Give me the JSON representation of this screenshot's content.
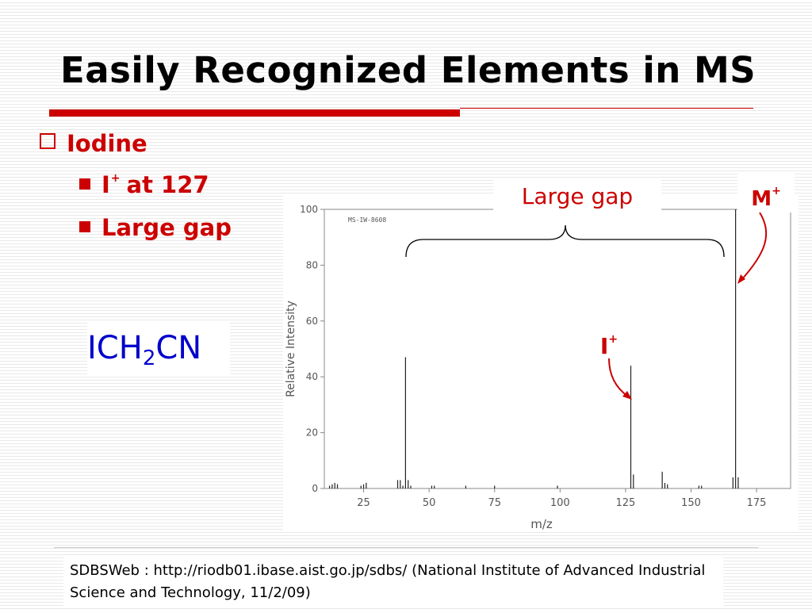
{
  "slide": {
    "title": "Easily Recognized Elements in MS",
    "bullet_main": "Iodine",
    "sub_bullets": [
      {
        "pre": "I",
        "sup": "+",
        "post": "at 127"
      },
      {
        "pre": "Large gap",
        "sup": "",
        "post": ""
      }
    ],
    "formula": {
      "a": "ICH",
      "sub": "2",
      "b": "CN"
    },
    "reference": "SDBSWeb : http://riodb01.ibase.aist.go.jp/sdbs/ (National Institute of Advanced Industrial Science and Technology, 11/2/09)"
  },
  "annotations": {
    "gap_label": "Large gap",
    "m_label": "M",
    "m_sup": "+",
    "i_label": "I",
    "i_sup": "+"
  },
  "spectrum": {
    "code": "MS-IW-8608",
    "xlabel": "m/z",
    "ylabel": "Relative Intensity",
    "x_ticks": [
      "25",
      "50",
      "75",
      "100",
      "125",
      "150",
      "175"
    ],
    "y_ticks": [
      "0",
      "20",
      "40",
      "60",
      "80",
      "100"
    ],
    "xlim": [
      10,
      188
    ],
    "ylim": [
      0,
      100
    ],
    "peaks": [
      {
        "mz": 12,
        "i": 1
      },
      {
        "mz": 13,
        "i": 1.5
      },
      {
        "mz": 14,
        "i": 2
      },
      {
        "mz": 15,
        "i": 1.5
      },
      {
        "mz": 24,
        "i": 1
      },
      {
        "mz": 25,
        "i": 1.5
      },
      {
        "mz": 26,
        "i": 2
      },
      {
        "mz": 38,
        "i": 3
      },
      {
        "mz": 39,
        "i": 3
      },
      {
        "mz": 40,
        "i": 1
      },
      {
        "mz": 41,
        "i": 47
      },
      {
        "mz": 42,
        "i": 3
      },
      {
        "mz": 43,
        "i": 1
      },
      {
        "mz": 51,
        "i": 1
      },
      {
        "mz": 52,
        "i": 1
      },
      {
        "mz": 64,
        "i": 1
      },
      {
        "mz": 75,
        "i": 1
      },
      {
        "mz": 99,
        "i": 1
      },
      {
        "mz": 127,
        "i": 44
      },
      {
        "mz": 128,
        "i": 5
      },
      {
        "mz": 139,
        "i": 6
      },
      {
        "mz": 140,
        "i": 2
      },
      {
        "mz": 141,
        "i": 1.5
      },
      {
        "mz": 153,
        "i": 1
      },
      {
        "mz": 154,
        "i": 1
      },
      {
        "mz": 166,
        "i": 4
      },
      {
        "mz": 167,
        "i": 100
      },
      {
        "mz": 168,
        "i": 4
      }
    ]
  }
}
